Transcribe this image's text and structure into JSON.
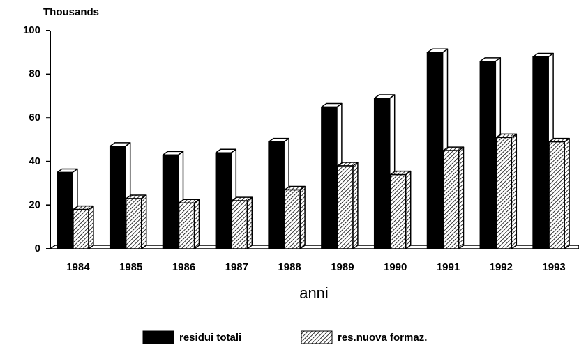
{
  "chart_data": {
    "type": "bar3d",
    "y_unit_label": "Thousands",
    "x_label": "anni",
    "categories": [
      "1984",
      "1985",
      "1986",
      "1987",
      "1988",
      "1989",
      "1990",
      "1991",
      "1992",
      "1993"
    ],
    "series": [
      {
        "name": "residui totali",
        "color": "#000000",
        "hatch": false,
        "values": [
          35,
          47,
          43,
          44,
          49,
          65,
          69,
          90,
          86,
          88
        ]
      },
      {
        "name": "res.nuova formaz.",
        "color": "#000000",
        "hatch": true,
        "values": [
          18,
          23,
          21,
          22,
          27,
          38,
          34,
          45,
          51,
          49
        ]
      }
    ],
    "ylim": [
      0,
      100
    ],
    "yticks": [
      0,
      20,
      40,
      60,
      80,
      100
    ],
    "grid": false,
    "legend": "bottom"
  }
}
